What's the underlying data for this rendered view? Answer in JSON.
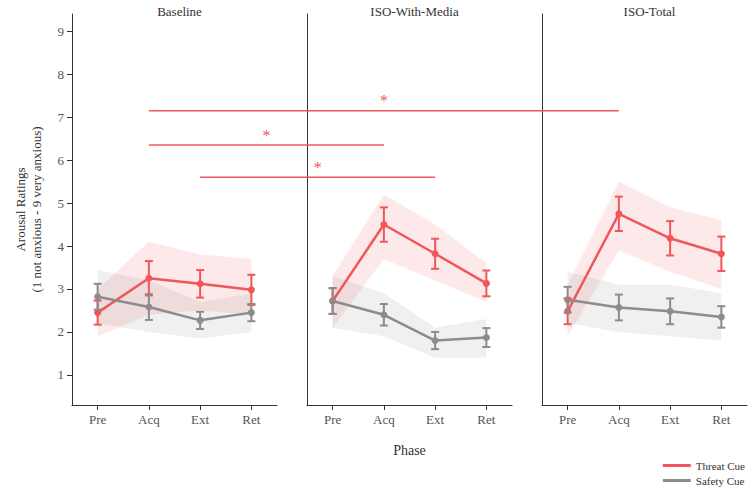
{
  "chart_data": {
    "type": "line",
    "xlabel": "Phase",
    "ylabel": "Arousal Ratings\n(1 not anxious - 9 very anxious)",
    "ylim": [
      0.3,
      9.4
    ],
    "yticks": [
      1,
      2,
      3,
      4,
      5,
      6,
      7,
      8,
      9
    ],
    "legend": "bottom-right",
    "marker": "circle",
    "panels": [
      {
        "title": "Baseline",
        "categories": [
          "Pre",
          "Acq",
          "Ext",
          "Ret"
        ],
        "series": [
          {
            "name": "Threat Cue",
            "color": "#f0575a",
            "values": [
              2.45,
              3.25,
              3.12,
              2.98
            ],
            "error": [
              0.28,
              0.4,
              0.32,
              0.35
            ],
            "band_low": [
              1.9,
              2.4,
              2.5,
              2.4
            ],
            "band_high": [
              3.0,
              4.1,
              3.8,
              3.7
            ]
          },
          {
            "name": "Safety Cue",
            "color": "#8c8c8c",
            "values": [
              2.82,
              2.58,
              2.27,
              2.45
            ],
            "error": [
              0.3,
              0.3,
              0.2,
              0.2
            ],
            "band_low": [
              2.2,
              2.0,
              1.85,
              2.0
            ],
            "band_high": [
              3.45,
              3.2,
              2.7,
              2.9
            ]
          }
        ]
      },
      {
        "title": "ISO-With-Media",
        "categories": [
          "Pre",
          "Acq",
          "Ext",
          "Ret"
        ],
        "series": [
          {
            "name": "Threat Cue",
            "color": "#f0575a",
            "values": [
              2.72,
              4.5,
              3.82,
              3.13
            ],
            "error": [
              0.3,
              0.4,
              0.35,
              0.3
            ],
            "band_low": [
              2.1,
              3.7,
              3.2,
              2.7
            ],
            "band_high": [
              3.3,
              5.2,
              4.5,
              3.6
            ]
          },
          {
            "name": "Safety Cue",
            "color": "#8c8c8c",
            "values": [
              2.72,
              2.4,
              1.8,
              1.87
            ],
            "error": [
              0.3,
              0.25,
              0.2,
              0.22
            ],
            "band_low": [
              2.1,
              1.9,
              1.4,
              1.4
            ],
            "band_high": [
              3.3,
              2.9,
              2.1,
              2.3
            ]
          }
        ]
      },
      {
        "title": "ISO-Total",
        "categories": [
          "Pre",
          "Acq",
          "Ext",
          "Ret"
        ],
        "series": [
          {
            "name": "Threat Cue",
            "color": "#f0575a",
            "values": [
              2.48,
              4.75,
              4.18,
              3.82
            ],
            "error": [
              0.3,
              0.4,
              0.4,
              0.4
            ],
            "band_low": [
              1.9,
              3.9,
              3.4,
              3.0
            ],
            "band_high": [
              3.1,
              5.5,
              4.9,
              4.6
            ]
          },
          {
            "name": "Safety Cue",
            "color": "#8c8c8c",
            "values": [
              2.75,
              2.57,
              2.48,
              2.35
            ],
            "error": [
              0.3,
              0.3,
              0.3,
              0.25
            ],
            "band_low": [
              2.2,
              2.0,
              1.9,
              1.8
            ],
            "band_high": [
              3.4,
              3.1,
              3.1,
              2.9
            ]
          }
        ]
      }
    ],
    "annotations": [
      {
        "label": "*",
        "color": "#f0575a",
        "y": 7.15,
        "from": {
          "panel": 0,
          "category": "Acq"
        },
        "to": {
          "panel": 2,
          "category": "Acq"
        }
      },
      {
        "label": "*",
        "color": "#f0575a",
        "y": 6.35,
        "from": {
          "panel": 0,
          "category": "Acq"
        },
        "to": {
          "panel": 1,
          "category": "Acq"
        }
      },
      {
        "label": "*",
        "color": "#f0575a",
        "y": 5.6,
        "from": {
          "panel": 0,
          "category": "Ext"
        },
        "to": {
          "panel": 1,
          "category": "Ext"
        }
      }
    ]
  }
}
